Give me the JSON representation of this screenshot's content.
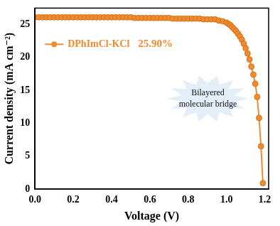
{
  "chart_data": {
    "type": "line",
    "x_label": "Voltage (V)",
    "y_label": "Current density (mA cm⁻²)",
    "x": [
      0,
      0.02,
      0.04,
      0.06,
      0.08,
      0.1,
      0.12,
      0.14,
      0.16,
      0.18,
      0.2,
      0.22,
      0.24,
      0.26,
      0.28,
      0.3,
      0.32,
      0.34,
      0.36,
      0.38,
      0.4,
      0.42,
      0.44,
      0.46,
      0.48,
      0.5,
      0.52,
      0.54,
      0.56,
      0.58,
      0.6,
      0.62,
      0.64,
      0.66,
      0.68,
      0.7,
      0.72,
      0.74,
      0.76,
      0.78,
      0.8,
      0.82,
      0.84,
      0.86,
      0.88,
      0.9,
      0.92,
      0.94,
      0.96,
      0.98,
      1.0,
      1.01,
      1.02,
      1.03,
      1.04,
      1.05,
      1.06,
      1.07,
      1.08,
      1.09,
      1.1,
      1.11,
      1.12,
      1.13,
      1.14,
      1.15,
      1.16,
      1.17,
      1.18,
      1.19
    ],
    "series": [
      {
        "name": "DPhImCl-KCl",
        "color": "#f28a2e",
        "marker": "circle",
        "line_style": "solid",
        "values": [
          26.1,
          26.1,
          26.1,
          26.1,
          26.1,
          26.1,
          26.1,
          26.1,
          26.1,
          26.1,
          26.1,
          26.1,
          26.1,
          26.1,
          26.1,
          26.1,
          26.1,
          26.1,
          26.1,
          26.1,
          26.1,
          26.1,
          26.1,
          26.1,
          26.1,
          26.1,
          26.0,
          26.0,
          26.0,
          26.0,
          26.0,
          26.0,
          26.0,
          26.0,
          26.0,
          26.0,
          25.9,
          25.9,
          25.9,
          25.9,
          25.9,
          25.9,
          25.9,
          25.9,
          25.8,
          25.8,
          25.8,
          25.8,
          25.6,
          25.5,
          25.3,
          25.1,
          24.9,
          24.6,
          24.3,
          24.0,
          23.6,
          23.2,
          22.7,
          22.1,
          21.4,
          20.6,
          19.7,
          18.6,
          17.4,
          16.0,
          14.0,
          10.8,
          6.5,
          0.9
        ]
      }
    ],
    "xlim": [
      0,
      1.22
    ],
    "xticks": [
      {
        "value": 0,
        "label": "0.0"
      },
      0.2,
      0.4,
      0.6,
      0.8,
      {
        "value": 1,
        "label": "1.0"
      },
      1.2
    ],
    "ylim": [
      0,
      27.5
    ],
    "yticks": [
      0,
      5,
      10,
      15,
      20,
      25
    ],
    "grid": false,
    "legend": "upper left",
    "annotations": [
      "25.90%",
      "Bilayered molecular bridge"
    ]
  }
}
